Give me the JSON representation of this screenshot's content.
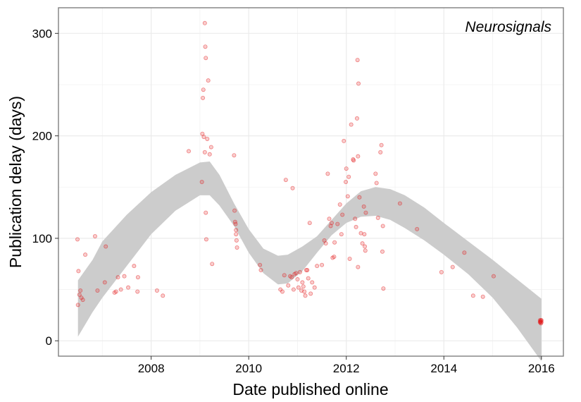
{
  "chart_data": {
    "type": "scatter",
    "xlabel": "Date published online",
    "ylabel": "Publication delay (days)",
    "annotation": "Neurosignals",
    "xlim": [
      2006.1,
      2016.45
    ],
    "ylim": [
      -15,
      325
    ],
    "x_ticks": [
      2008,
      2010,
      2012,
      2014,
      2016
    ],
    "y_ticks": [
      0,
      100,
      200,
      300
    ],
    "grid": true,
    "point_color": "#e41a1c",
    "band_color": "#cccccc",
    "points": [
      {
        "x": 2006.49,
        "y": 99
      },
      {
        "x": 2006.51,
        "y": 68
      },
      {
        "x": 2006.53,
        "y": 45
      },
      {
        "x": 2006.55,
        "y": 49
      },
      {
        "x": 2006.57,
        "y": 42
      },
      {
        "x": 2006.5,
        "y": 35
      },
      {
        "x": 2006.6,
        "y": 40
      },
      {
        "x": 2006.65,
        "y": 84
      },
      {
        "x": 2006.85,
        "y": 102
      },
      {
        "x": 2006.9,
        "y": 49
      },
      {
        "x": 2007.05,
        "y": 57
      },
      {
        "x": 2007.07,
        "y": 92
      },
      {
        "x": 2007.25,
        "y": 47
      },
      {
        "x": 2007.28,
        "y": 48
      },
      {
        "x": 2007.32,
        "y": 62
      },
      {
        "x": 2007.38,
        "y": 50
      },
      {
        "x": 2007.45,
        "y": 63
      },
      {
        "x": 2007.53,
        "y": 52
      },
      {
        "x": 2007.65,
        "y": 73
      },
      {
        "x": 2007.72,
        "y": 48
      },
      {
        "x": 2007.73,
        "y": 62
      },
      {
        "x": 2008.12,
        "y": 49
      },
      {
        "x": 2008.24,
        "y": 44
      },
      {
        "x": 2008.77,
        "y": 185
      },
      {
        "x": 2009.04,
        "y": 155
      },
      {
        "x": 2009.05,
        "y": 202
      },
      {
        "x": 2009.06,
        "y": 237
      },
      {
        "x": 2009.07,
        "y": 245
      },
      {
        "x": 2009.08,
        "y": 199
      },
      {
        "x": 2009.1,
        "y": 310
      },
      {
        "x": 2009.11,
        "y": 287
      },
      {
        "x": 2009.12,
        "y": 276
      },
      {
        "x": 2009.1,
        "y": 184
      },
      {
        "x": 2009.12,
        "y": 125
      },
      {
        "x": 2009.13,
        "y": 99
      },
      {
        "x": 2009.15,
        "y": 197
      },
      {
        "x": 2009.17,
        "y": 254
      },
      {
        "x": 2009.2,
        "y": 182
      },
      {
        "x": 2009.23,
        "y": 189
      },
      {
        "x": 2009.25,
        "y": 75
      },
      {
        "x": 2009.7,
        "y": 181
      },
      {
        "x": 2009.71,
        "y": 127
      },
      {
        "x": 2009.72,
        "y": 116
      },
      {
        "x": 2009.73,
        "y": 114
      },
      {
        "x": 2009.74,
        "y": 108
      },
      {
        "x": 2009.74,
        "y": 104
      },
      {
        "x": 2009.75,
        "y": 98
      },
      {
        "x": 2009.76,
        "y": 91
      },
      {
        "x": 2010.23,
        "y": 74
      },
      {
        "x": 2010.25,
        "y": 69
      },
      {
        "x": 2010.65,
        "y": 50
      },
      {
        "x": 2010.69,
        "y": 48
      },
      {
        "x": 2010.73,
        "y": 64
      },
      {
        "x": 2010.76,
        "y": 157
      },
      {
        "x": 2010.81,
        "y": 54
      },
      {
        "x": 2010.85,
        "y": 63
      },
      {
        "x": 2010.88,
        "y": 62
      },
      {
        "x": 2010.9,
        "y": 149
      },
      {
        "x": 2010.92,
        "y": 50
      },
      {
        "x": 2010.94,
        "y": 65
      },
      {
        "x": 2010.97,
        "y": 66
      },
      {
        "x": 2011.0,
        "y": 60
      },
      {
        "x": 2011.02,
        "y": 52
      },
      {
        "x": 2011.05,
        "y": 67
      },
      {
        "x": 2011.08,
        "y": 49
      },
      {
        "x": 2011.1,
        "y": 57
      },
      {
        "x": 2011.12,
        "y": 53
      },
      {
        "x": 2011.14,
        "y": 48
      },
      {
        "x": 2011.16,
        "y": 44
      },
      {
        "x": 2011.18,
        "y": 69
      },
      {
        "x": 2011.2,
        "y": 69
      },
      {
        "x": 2011.22,
        "y": 61
      },
      {
        "x": 2011.25,
        "y": 115
      },
      {
        "x": 2011.27,
        "y": 46
      },
      {
        "x": 2011.3,
        "y": 57
      },
      {
        "x": 2011.35,
        "y": 52
      },
      {
        "x": 2011.4,
        "y": 73
      },
      {
        "x": 2011.5,
        "y": 74
      },
      {
        "x": 2011.55,
        "y": 98
      },
      {
        "x": 2011.58,
        "y": 95
      },
      {
        "x": 2011.62,
        "y": 163
      },
      {
        "x": 2011.65,
        "y": 119
      },
      {
        "x": 2011.68,
        "y": 112
      },
      {
        "x": 2011.7,
        "y": 115
      },
      {
        "x": 2011.72,
        "y": 81
      },
      {
        "x": 2011.75,
        "y": 82
      },
      {
        "x": 2011.76,
        "y": 96
      },
      {
        "x": 2011.82,
        "y": 114
      },
      {
        "x": 2011.87,
        "y": 133
      },
      {
        "x": 2011.9,
        "y": 104
      },
      {
        "x": 2011.92,
        "y": 123
      },
      {
        "x": 2011.95,
        "y": 195
      },
      {
        "x": 2011.99,
        "y": 155
      },
      {
        "x": 2012.0,
        "y": 168
      },
      {
        "x": 2012.03,
        "y": 141
      },
      {
        "x": 2012.05,
        "y": 160
      },
      {
        "x": 2012.07,
        "y": 80
      },
      {
        "x": 2012.1,
        "y": 211
      },
      {
        "x": 2012.14,
        "y": 177
      },
      {
        "x": 2012.15,
        "y": 176
      },
      {
        "x": 2012.18,
        "y": 119
      },
      {
        "x": 2012.2,
        "y": 111
      },
      {
        "x": 2012.22,
        "y": 217
      },
      {
        "x": 2012.24,
        "y": 180
      },
      {
        "x": 2012.23,
        "y": 274
      },
      {
        "x": 2012.25,
        "y": 251
      },
      {
        "x": 2012.27,
        "y": 140
      },
      {
        "x": 2012.3,
        "y": 105
      },
      {
        "x": 2012.24,
        "y": 72
      },
      {
        "x": 2012.33,
        "y": 95
      },
      {
        "x": 2012.36,
        "y": 131
      },
      {
        "x": 2012.37,
        "y": 104
      },
      {
        "x": 2012.38,
        "y": 92
      },
      {
        "x": 2012.39,
        "y": 88
      },
      {
        "x": 2012.4,
        "y": 125
      },
      {
        "x": 2012.6,
        "y": 163
      },
      {
        "x": 2012.62,
        "y": 154
      },
      {
        "x": 2012.65,
        "y": 120
      },
      {
        "x": 2012.7,
        "y": 184
      },
      {
        "x": 2012.72,
        "y": 191
      },
      {
        "x": 2012.74,
        "y": 87
      },
      {
        "x": 2012.75,
        "y": 112
      },
      {
        "x": 2012.76,
        "y": 51
      },
      {
        "x": 2013.1,
        "y": 134
      },
      {
        "x": 2013.45,
        "y": 109
      },
      {
        "x": 2013.95,
        "y": 67
      },
      {
        "x": 2014.18,
        "y": 72
      },
      {
        "x": 2014.42,
        "y": 86
      },
      {
        "x": 2014.6,
        "y": 44
      },
      {
        "x": 2014.8,
        "y": 43
      },
      {
        "x": 2015.02,
        "y": 63
      },
      {
        "x": 2015.97,
        "y": 20
      },
      {
        "x": 2015.98,
        "y": 18
      },
      {
        "x": 2015.98,
        "y": 19
      },
      {
        "x": 2015.99,
        "y": 17
      },
      {
        "x": 2016.0,
        "y": 20
      },
      {
        "x": 2015.97,
        "y": 18
      },
      {
        "x": 2015.99,
        "y": 20
      },
      {
        "x": 2016.0,
        "y": 18
      },
      {
        "x": 2015.98,
        "y": 19
      }
    ],
    "smooth_band": {
      "x": [
        2006.5,
        2006.8,
        2007.0,
        2007.5,
        2008.0,
        2008.5,
        2009.0,
        2009.2,
        2009.4,
        2009.7,
        2010.0,
        2010.3,
        2010.6,
        2010.8,
        2011.1,
        2011.4,
        2011.7,
        2012.0,
        2012.3,
        2012.6,
        2012.9,
        2013.2,
        2013.6,
        2014.0,
        2014.5,
        2015.0,
        2015.5,
        2016.0
      ],
      "lower": [
        4,
        28,
        42,
        73,
        104,
        127,
        142,
        142,
        132,
        112,
        86,
        66,
        55,
        56,
        68,
        86,
        103,
        115,
        121,
        122,
        118,
        110,
        98,
        84,
        65,
        42,
        13,
        -20
      ],
      "upper": [
        59,
        79,
        97,
        123,
        145,
        162,
        174,
        175,
        162,
        134,
        109,
        90,
        83,
        84,
        92,
        102,
        118,
        134,
        146,
        150,
        148,
        142,
        130,
        115,
        97,
        79,
        60,
        41
      ]
    }
  }
}
